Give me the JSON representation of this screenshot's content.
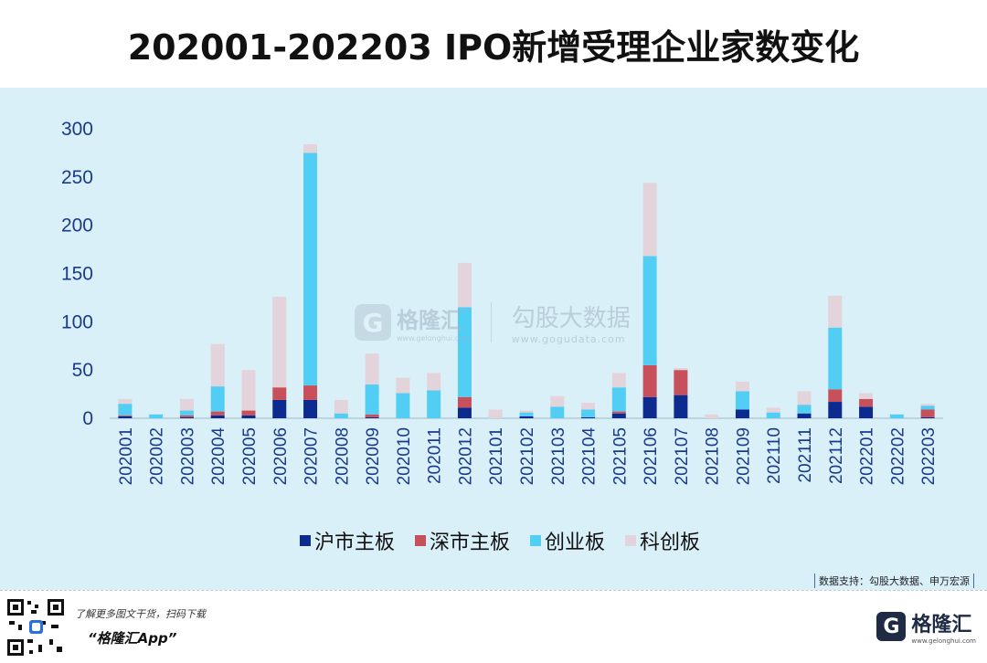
{
  "title": "202001-202203 IPO新增受理企业家数变化",
  "watermark": {
    "brand_name": "格隆汇",
    "brand_url": "www.gelonghui.com",
    "right_name": "勾股大数据",
    "right_url": "www.gogudata.com"
  },
  "source_note": "数据支持：勾股大数据、申万宏源",
  "footer": {
    "tagline": "了解更多图文干货，扫码下载",
    "app": "“格隆汇App”",
    "logo_name": "格隆汇",
    "logo_url": "www.gelonghui.com"
  },
  "colors": {
    "沪市主板": "#0d2b8e",
    "深市主板": "#c8505a",
    "创业板": "#52cdf4",
    "科创板": "#e3d3da"
  },
  "chart_data": {
    "type": "bar",
    "stacked": true,
    "title": "202001-202203 IPO新增受理企业家数变化",
    "xlabel": "",
    "ylabel": "",
    "ylim": [
      0,
      300
    ],
    "yticks": [
      0,
      50,
      100,
      150,
      200,
      250,
      300
    ],
    "legend_position": "bottom",
    "categories": [
      "202001",
      "202002",
      "202003",
      "202004",
      "202005",
      "202006",
      "202007",
      "202008",
      "202009",
      "202010",
      "202011",
      "202012",
      "202101",
      "202102",
      "202103",
      "202104",
      "202105",
      "202106",
      "202107",
      "202108",
      "202109",
      "202110",
      "202111",
      "202112",
      "202201",
      "202202",
      "202203"
    ],
    "series": [
      {
        "name": "沪市主板",
        "values": [
          2,
          0,
          1,
          3,
          3,
          19,
          19,
          0,
          1,
          0,
          0,
          11,
          0,
          2,
          0,
          1,
          5,
          22,
          24,
          0,
          9,
          0,
          5,
          17,
          12,
          0,
          1
        ]
      },
      {
        "name": "深市主板",
        "values": [
          1,
          0,
          2,
          4,
          5,
          13,
          15,
          0,
          3,
          0,
          0,
          11,
          0,
          0,
          0,
          0,
          2,
          33,
          26,
          0,
          0,
          0,
          0,
          13,
          8,
          0,
          8
        ]
      },
      {
        "name": "创业板",
        "values": [
          12,
          4,
          5,
          26,
          0,
          0,
          241,
          5,
          31,
          26,
          29,
          93,
          0,
          4,
          12,
          8,
          25,
          113,
          0,
          0,
          19,
          6,
          9,
          64,
          0,
          4,
          4
        ]
      },
      {
        "name": "科创板",
        "values": [
          5,
          0,
          12,
          44,
          42,
          94,
          9,
          14,
          32,
          16,
          18,
          46,
          9,
          2,
          11,
          7,
          15,
          76,
          2,
          4,
          10,
          5,
          14,
          33,
          6,
          0,
          2
        ]
      }
    ]
  }
}
